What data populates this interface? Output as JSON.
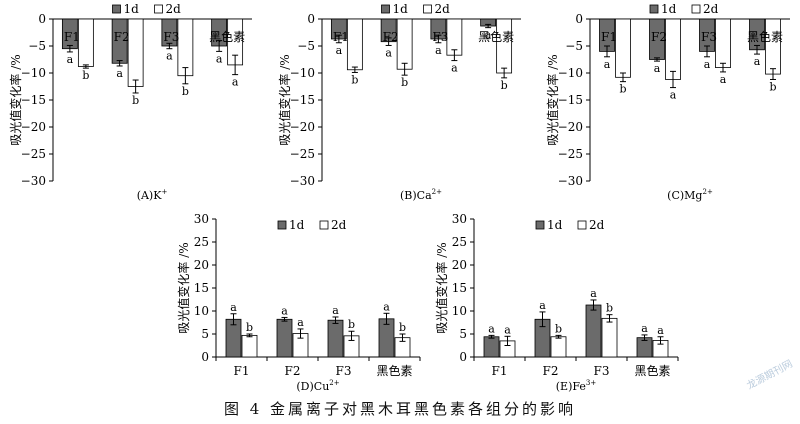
{
  "figure": {
    "caption": "图 4   金属离子对黑木耳黑色素各组分的影响",
    "watermark": "龙源期刊网",
    "ylabel": "吸光值变化率 /%"
  },
  "colors": {
    "dark_bar": "#6b6b6b",
    "light_bar": "#ffffff",
    "axis": "#000000"
  },
  "chart_data": [
    {
      "id": "A",
      "type": "bar",
      "label": "(A)K",
      "ion_sup": "+",
      "categories": [
        "F1",
        "F2",
        "F3",
        "黑色素"
      ],
      "ylim": [
        -30,
        0
      ],
      "yticks": [
        0,
        -5,
        -10,
        -15,
        -20,
        -25,
        -30
      ],
      "ylabel": "吸光值变化率 /%",
      "legend": "top",
      "grid": false,
      "series": [
        {
          "name": "1d",
          "values": [
            -5.5,
            -8.2,
            -5.0,
            -5.0
          ],
          "errors": [
            0.6,
            0.5,
            0.5,
            1.0
          ],
          "sig": [
            "a",
            "a",
            "a",
            "a"
          ]
        },
        {
          "name": "2d",
          "values": [
            -8.8,
            -12.5,
            -10.5,
            -8.5
          ],
          "errors": [
            0.3,
            1.2,
            1.5,
            1.8
          ],
          "sig": [
            "b",
            "b",
            "b",
            "a"
          ]
        }
      ]
    },
    {
      "id": "B",
      "type": "bar",
      "label": "(B)Ca",
      "ion_sup": "2+",
      "categories": [
        "F1",
        "F2",
        "F3",
        "黑色素"
      ],
      "ylim": [
        -30,
        0
      ],
      "yticks": [
        0,
        -5,
        -10,
        -15,
        -20,
        -25,
        -30
      ],
      "ylabel": "吸光值变化率 /%",
      "legend": "top",
      "grid": false,
      "series": [
        {
          "name": "1d",
          "values": [
            -3.7,
            -4.2,
            -3.7,
            -1.3
          ],
          "errors": [
            0.7,
            0.7,
            0.7,
            0.3
          ],
          "sig": [
            "a",
            "a",
            "a",
            "a"
          ]
        },
        {
          "name": "2d",
          "values": [
            -9.4,
            -9.3,
            -6.7,
            -10.0
          ],
          "errors": [
            0.5,
            1.1,
            1.0,
            0.9
          ],
          "sig": [
            "b",
            "b",
            "a",
            "b"
          ]
        }
      ]
    },
    {
      "id": "C",
      "type": "bar",
      "label": "(C)Mg",
      "ion_sup": "2+",
      "categories": [
        "F1",
        "F2",
        "F3",
        "黑色素"
      ],
      "ylim": [
        -30,
        0
      ],
      "yticks": [
        0,
        -5,
        -10,
        -15,
        -20,
        -25,
        -30
      ],
      "ylabel": "吸光值变化率 /%",
      "legend": "top",
      "grid": false,
      "series": [
        {
          "name": "1d",
          "values": [
            -6.0,
            -7.5,
            -6.0,
            -5.7
          ],
          "errors": [
            1.0,
            0.3,
            1.0,
            0.8
          ],
          "sig": [
            "a",
            "a",
            "a",
            "a"
          ]
        },
        {
          "name": "2d",
          "values": [
            -10.8,
            -11.2,
            -9.0,
            -10.2
          ],
          "errors": [
            0.8,
            1.5,
            0.8,
            1.0
          ],
          "sig": [
            "b",
            "a",
            "a",
            "b"
          ]
        }
      ]
    },
    {
      "id": "D",
      "type": "bar",
      "label": "(D)Cu",
      "ion_sup": "2+",
      "categories": [
        "F1",
        "F2",
        "F3",
        "黑色素"
      ],
      "ylim": [
        0,
        30
      ],
      "yticks": [
        0,
        5,
        10,
        15,
        20,
        25,
        30
      ],
      "ylabel": "吸光值变化率 /%",
      "legend": "top",
      "grid": false,
      "series": [
        {
          "name": "1d",
          "values": [
            8.2,
            8.2,
            8.0,
            8.3
          ],
          "errors": [
            1.2,
            0.4,
            0.7,
            1.2
          ],
          "sig": [
            "a",
            "a",
            "a",
            "a"
          ]
        },
        {
          "name": "2d",
          "values": [
            4.7,
            5.1,
            4.6,
            4.2
          ],
          "errors": [
            0.3,
            1.0,
            1.0,
            0.8
          ],
          "sig": [
            "b",
            "a",
            "b",
            "b"
          ]
        }
      ]
    },
    {
      "id": "E",
      "type": "bar",
      "label": "(E)Fe",
      "ion_sup": "3+",
      "categories": [
        "F1",
        "F2",
        "F3",
        "黑色素"
      ],
      "ylim": [
        0,
        30
      ],
      "yticks": [
        0,
        5,
        10,
        15,
        20,
        25,
        30
      ],
      "ylabel": "吸光值变化率 /%",
      "legend": "top",
      "grid": false,
      "series": [
        {
          "name": "1d",
          "values": [
            4.4,
            8.2,
            11.3,
            4.2
          ],
          "errors": [
            0.3,
            1.6,
            1.1,
            0.6
          ],
          "sig": [
            "a",
            "a",
            "a",
            "a"
          ]
        },
        {
          "name": "2d",
          "values": [
            3.5,
            4.4,
            8.4,
            3.6
          ],
          "errors": [
            1.0,
            0.3,
            0.8,
            0.8
          ],
          "sig": [
            "a",
            "b",
            "b",
            "a"
          ]
        }
      ]
    }
  ]
}
